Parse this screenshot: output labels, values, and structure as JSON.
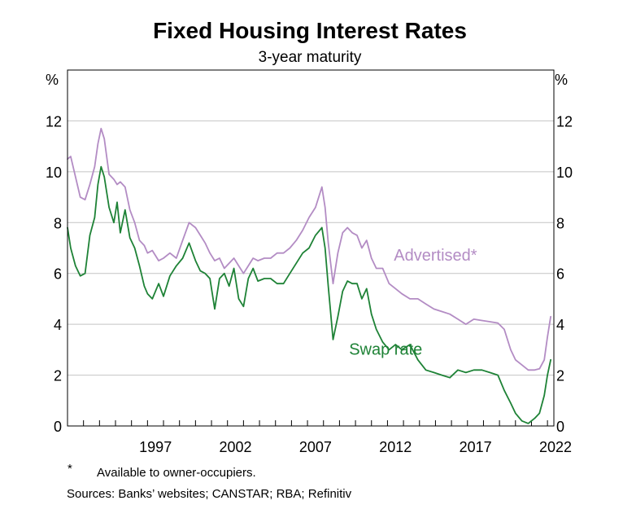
{
  "chart_data": {
    "type": "line",
    "title": "Fixed Housing Interest Rates",
    "subtitle": "3-year maturity",
    "ylabel_left": "%",
    "ylabel_right": "%",
    "ylim": [
      0,
      14
    ],
    "xlim": [
      1992.0,
      2022.4
    ],
    "yticks": [
      "0",
      "2",
      "4",
      "6",
      "8",
      "10",
      "12"
    ],
    "xticks": [
      "1997",
      "2002",
      "2007",
      "2012",
      "2017",
      "2022"
    ],
    "grid": true,
    "series": [
      {
        "name": "Advertised*",
        "color": "#b38cc4",
        "x": [
          1992.0,
          1992.2,
          1992.5,
          1992.8,
          1993.1,
          1993.4,
          1993.7,
          1993.9,
          1994.1,
          1994.3,
          1994.6,
          1994.9,
          1995.1,
          1995.3,
          1995.6,
          1995.9,
          1996.2,
          1996.5,
          1996.8,
          1997.0,
          1997.3,
          1997.7,
          1998.0,
          1998.4,
          1998.8,
          1999.2,
          1999.6,
          2000.0,
          2000.3,
          2000.6,
          2000.9,
          2001.2,
          2001.5,
          2001.8,
          2002.1,
          2002.4,
          2002.7,
          2003.0,
          2003.3,
          2003.6,
          2003.9,
          2004.3,
          2004.7,
          2005.1,
          2005.5,
          2005.9,
          2006.3,
          2006.7,
          2007.1,
          2007.5,
          2007.9,
          2008.1,
          2008.3,
          2008.6,
          2008.9,
          2009.2,
          2009.5,
          2009.8,
          2010.1,
          2010.4,
          2010.7,
          2011.0,
          2011.3,
          2011.7,
          2012.1,
          2012.5,
          2012.9,
          2013.4,
          2013.9,
          2014.4,
          2014.9,
          2015.4,
          2015.9,
          2016.4,
          2016.9,
          2017.4,
          2017.9,
          2018.4,
          2018.9,
          2019.3,
          2019.7,
          2020.0,
          2020.4,
          2020.8,
          2021.2,
          2021.5,
          2021.8,
          2022.0,
          2022.2
        ],
        "values": [
          10.5,
          10.6,
          9.8,
          9.0,
          8.9,
          9.5,
          10.2,
          11.1,
          11.7,
          11.3,
          9.9,
          9.7,
          9.5,
          9.6,
          9.4,
          8.5,
          8.0,
          7.3,
          7.1,
          6.8,
          6.9,
          6.5,
          6.6,
          6.8,
          6.6,
          7.3,
          8.0,
          7.8,
          7.5,
          7.2,
          6.8,
          6.5,
          6.6,
          6.2,
          6.4,
          6.6,
          6.3,
          6.0,
          6.3,
          6.6,
          6.5,
          6.6,
          6.6,
          6.8,
          6.8,
          7.0,
          7.3,
          7.7,
          8.2,
          8.6,
          9.4,
          8.6,
          7.2,
          5.6,
          6.8,
          7.6,
          7.8,
          7.6,
          7.5,
          7.0,
          7.3,
          6.6,
          6.2,
          6.2,
          5.6,
          5.4,
          5.2,
          5.0,
          5.0,
          4.8,
          4.6,
          4.5,
          4.4,
          4.2,
          4.0,
          4.2,
          4.15,
          4.1,
          4.05,
          3.8,
          3.0,
          2.6,
          2.4,
          2.2,
          2.2,
          2.25,
          2.6,
          3.5,
          4.3
        ]
      },
      {
        "name": "Swap rate",
        "color": "#1e8236",
        "x": [
          1992.0,
          1992.2,
          1992.5,
          1992.8,
          1993.1,
          1993.4,
          1993.7,
          1993.9,
          1994.1,
          1994.3,
          1994.6,
          1994.9,
          1995.1,
          1995.3,
          1995.6,
          1995.9,
          1996.2,
          1996.5,
          1996.8,
          1997.0,
          1997.3,
          1997.7,
          1998.0,
          1998.4,
          1998.8,
          1999.2,
          1999.6,
          2000.0,
          2000.3,
          2000.6,
          2000.9,
          2001.2,
          2001.5,
          2001.8,
          2002.1,
          2002.4,
          2002.7,
          2003.0,
          2003.3,
          2003.6,
          2003.9,
          2004.3,
          2004.7,
          2005.1,
          2005.5,
          2005.9,
          2006.3,
          2006.7,
          2007.1,
          2007.5,
          2007.9,
          2008.1,
          2008.3,
          2008.6,
          2008.9,
          2009.2,
          2009.5,
          2009.8,
          2010.1,
          2010.4,
          2010.7,
          2011.0,
          2011.3,
          2011.7,
          2012.1,
          2012.5,
          2012.9,
          2013.4,
          2013.9,
          2014.4,
          2014.9,
          2015.4,
          2015.9,
          2016.4,
          2016.9,
          2017.4,
          2017.9,
          2018.4,
          2018.9,
          2019.3,
          2019.7,
          2020.0,
          2020.4,
          2020.8,
          2021.2,
          2021.5,
          2021.8,
          2022.0,
          2022.2
        ],
        "values": [
          7.8,
          7.0,
          6.3,
          5.9,
          6.0,
          7.5,
          8.2,
          9.5,
          10.2,
          9.8,
          8.6,
          8.0,
          8.8,
          7.6,
          8.5,
          7.4,
          7.0,
          6.3,
          5.5,
          5.2,
          5.0,
          5.6,
          5.1,
          5.9,
          6.3,
          6.6,
          7.2,
          6.5,
          6.1,
          6.0,
          5.8,
          4.6,
          5.8,
          6.0,
          5.5,
          6.2,
          5.0,
          4.7,
          5.8,
          6.2,
          5.7,
          5.8,
          5.8,
          5.6,
          5.6,
          6.0,
          6.4,
          6.8,
          7.0,
          7.5,
          7.8,
          7.0,
          5.5,
          3.4,
          4.3,
          5.3,
          5.7,
          5.6,
          5.6,
          5.0,
          5.4,
          4.4,
          3.8,
          3.3,
          3.0,
          3.2,
          3.0,
          3.2,
          2.6,
          2.2,
          2.1,
          2.0,
          1.9,
          2.2,
          2.1,
          2.2,
          2.2,
          2.1,
          2.0,
          1.4,
          0.9,
          0.5,
          0.2,
          0.1,
          0.3,
          0.5,
          1.2,
          2.0,
          2.6
        ]
      }
    ],
    "annotations": [
      {
        "text": "Advertised*",
        "x": 2012.4,
        "y": 6.5,
        "series": 0
      },
      {
        "text": "Swap rate",
        "x": 2009.6,
        "y": 2.8,
        "series": 1
      }
    ]
  },
  "footnotes": {
    "star_symbol": "*",
    "star_text": "Available to owner-occupiers.",
    "sources": "Sources: Banks’ websites; CANSTAR; RBA; Refinitiv"
  }
}
